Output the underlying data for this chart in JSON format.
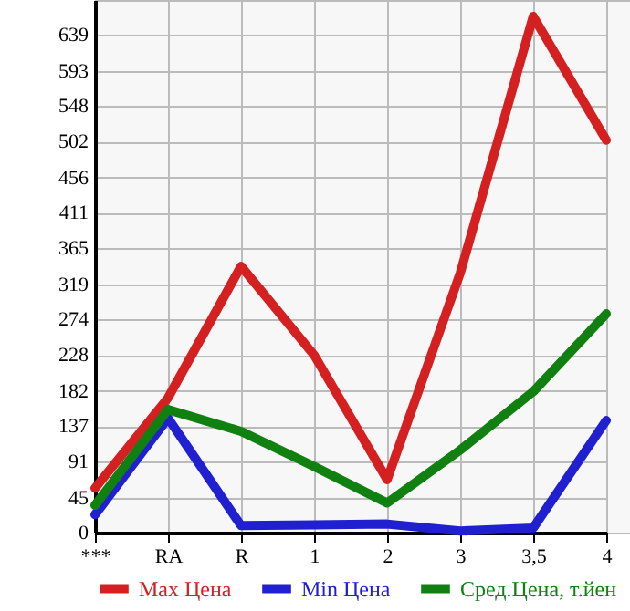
{
  "chart_data": {
    "type": "line",
    "categories": [
      "***",
      "RA",
      "R",
      "1",
      "2",
      "3",
      "3,5",
      "4"
    ],
    "series": [
      {
        "name": "Max Цена",
        "color": "#d42020",
        "values": [
          57,
          173,
          342,
          228,
          68,
          333,
          663,
          504
        ]
      },
      {
        "name": "Min Цена",
        "color": "#2020d0",
        "values": [
          23,
          147,
          9,
          10,
          11,
          2,
          6,
          144
        ]
      },
      {
        "name": "Сред.Цена, т.йен",
        "color": "#108010",
        "values": [
          35,
          158,
          130,
          85,
          38,
          106,
          181,
          281
        ]
      }
    ],
    "ylim": [
      0,
      684
    ],
    "yticks": [
      0,
      45,
      91,
      137,
      182,
      228,
      274,
      319,
      365,
      411,
      456,
      502,
      548,
      593,
      639
    ],
    "grid": true,
    "legend": "bottom",
    "marker": "none",
    "line_style": "solid"
  }
}
